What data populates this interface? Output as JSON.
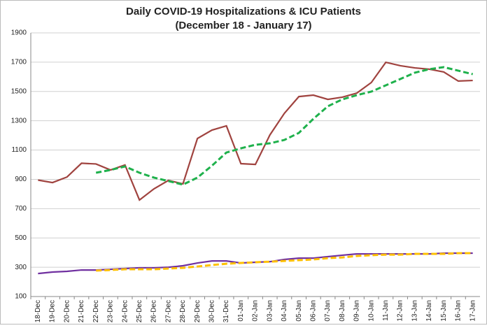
{
  "chart_data": {
    "type": "line",
    "title": "Daily COVID-19 Hospitalizations & ICU Patients",
    "subtitle": "(December 18 - January 17)",
    "categories": [
      "18-Dec",
      "19-Dec",
      "20-Dec",
      "21-Dec",
      "22-Dec",
      "23-Dec",
      "24-Dec",
      "25-Dec",
      "26-Dec",
      "27-Dec",
      "28-Dec",
      "29-Dec",
      "30-Dec",
      "31-Dec",
      "01-Jan",
      "02-Jan",
      "03-Jan",
      "04-Jan",
      "05-Jan",
      "06-Jan",
      "07-Jan",
      "08-Jan",
      "09-Jan",
      "10-Jan",
      "11-Jan",
      "12-Jan",
      "13-Jan",
      "14-Jan",
      "15-Jan",
      "16-Jan",
      "17-Jan"
    ],
    "series": [
      {
        "color": "#a0433f",
        "dashed": false,
        "values": [
          895,
          878,
          916,
          1010,
          1005,
          964,
          998,
          759,
          835,
          893,
          869,
          1179,
          1236,
          1265,
          1007,
          1002,
          1203,
          1351,
          1465,
          1475,
          1446,
          1461,
          1489,
          1561,
          1699,
          1676,
          1661,
          1652,
          1633,
          1571,
          1575
        ]
      },
      {
        "color": "#1fb14c",
        "dashed": true,
        "values": [
          null,
          null,
          null,
          null,
          945,
          964,
          988,
          945,
          912,
          888,
          864,
          912,
          993,
          1083,
          1112,
          1136,
          1146,
          1169,
          1217,
          1313,
          1399,
          1446,
          1475,
          1499,
          1542,
          1585,
          1628,
          1652,
          1666,
          1642,
          1618
        ]
      },
      {
        "color": "#7030a0",
        "dashed": false,
        "values": [
          257,
          267,
          272,
          281,
          281,
          286,
          291,
          296,
          296,
          300,
          310,
          329,
          343,
          343,
          329,
          334,
          338,
          353,
          362,
          362,
          372,
          382,
          391,
          391,
          391,
          391,
          391,
          391,
          396,
          396,
          396
        ]
      },
      {
        "color": "#ffc000",
        "dashed": true,
        "values": [
          null,
          null,
          null,
          null,
          277,
          281,
          286,
          286,
          286,
          291,
          296,
          305,
          315,
          324,
          329,
          334,
          338,
          343,
          348,
          353,
          362,
          367,
          377,
          382,
          386,
          386,
          391,
          391,
          391,
          396,
          396
        ]
      }
    ],
    "ylim": [
      100,
      1900
    ],
    "yticks": [
      100,
      300,
      500,
      700,
      900,
      1100,
      1300,
      1500,
      1700,
      1900
    ],
    "grid": true
  }
}
